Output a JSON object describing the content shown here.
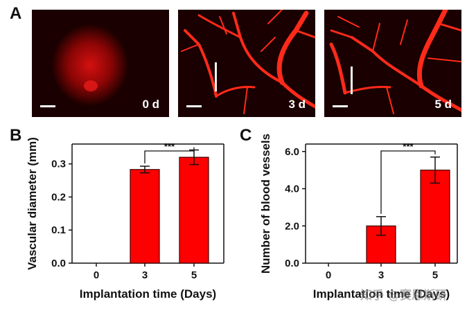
{
  "panels": {
    "a": {
      "letter": "A",
      "images": [
        {
          "label": "0 d"
        },
        {
          "label": "3 d"
        },
        {
          "label": "5 d"
        }
      ]
    },
    "b": {
      "letter": "B"
    },
    "c": {
      "letter": "C"
    }
  },
  "colors": {
    "bar": "#ff0000",
    "bar_edge": "#5a0000",
    "vessel": "#ff2a1a",
    "photo_bg": "#1a0000"
  },
  "significance": "***",
  "chart_data": [
    {
      "type": "bar",
      "categories": [
        "0",
        "3",
        "5"
      ],
      "values": [
        0,
        0.283,
        0.32
      ],
      "errors": [
        0,
        0.01,
        0.022
      ],
      "xlabel": "Implantation time (Days)",
      "ylabel": "Vascular diameter (mm)",
      "ylim": [
        0,
        0.36
      ],
      "yticks": [
        "0.0",
        "0.1",
        "0.2",
        "0.3"
      ],
      "ytick_values": [
        0,
        0.1,
        0.2,
        0.3
      ],
      "annotation": "***",
      "grid": false
    },
    {
      "type": "bar",
      "categories": [
        "0",
        "3",
        "5"
      ],
      "values": [
        0,
        2.0,
        5.0
      ],
      "errors": [
        0,
        0.5,
        0.7
      ],
      "xlabel": "Implantation time (Days)",
      "ylabel": "Number of blood vessels",
      "ylim": [
        0,
        6.4
      ],
      "yticks": [
        "0.0",
        "2.0",
        "4.0",
        "6.0"
      ],
      "ytick_values": [
        0,
        2,
        4,
        6
      ],
      "annotation": "***",
      "grid": false
    }
  ],
  "watermark": "知乎 @赛恩斯研"
}
